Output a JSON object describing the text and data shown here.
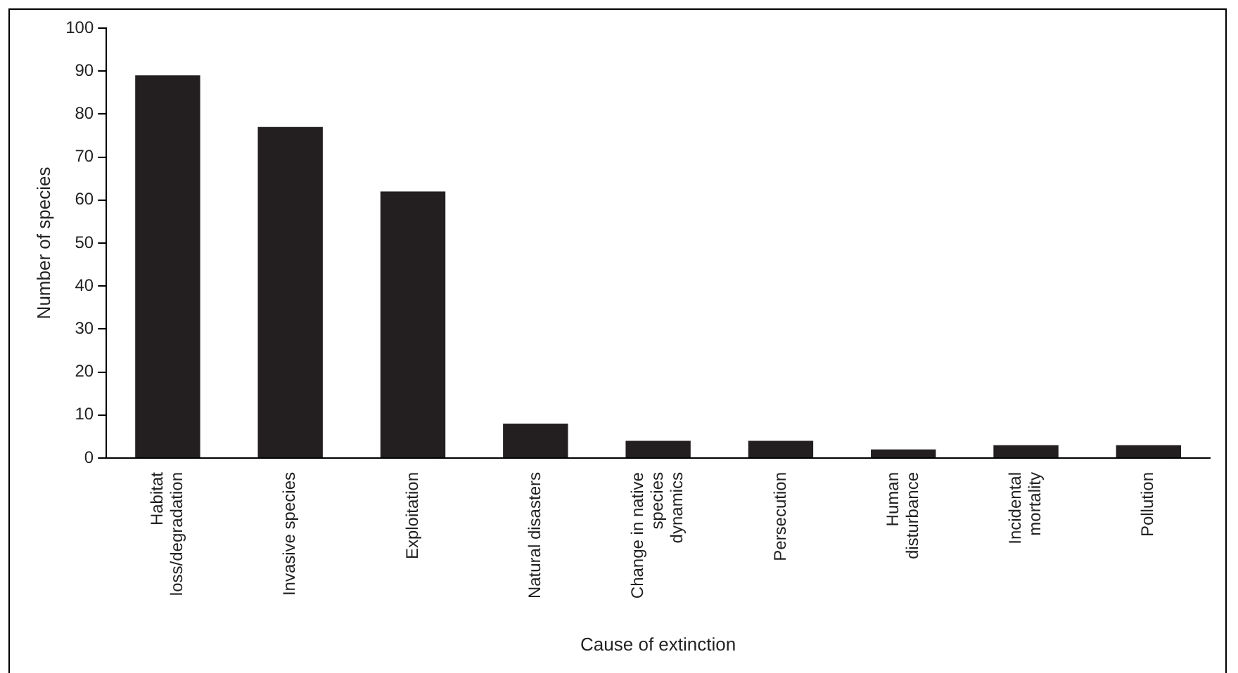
{
  "chart_data": {
    "type": "bar",
    "xlabel": "Cause of extinction",
    "ylabel": "Number of species",
    "categories": [
      "Habitat\nloss/degradation",
      "Invasive species",
      "Exploitation",
      "Natural disasters",
      "Change in native\nspecies\ndynamics",
      "Persecution",
      "Human\ndisturbance",
      "Incidental\nmortality",
      "Pollution"
    ],
    "values": [
      89,
      77,
      62,
      8,
      4,
      4,
      2,
      3,
      3
    ],
    "color": "#231f20",
    "ylim": [
      0,
      100
    ],
    "yticks": [
      0,
      10,
      20,
      30,
      40,
      50,
      60,
      70,
      80,
      90,
      100
    ],
    "grid": false,
    "legend": false
  }
}
